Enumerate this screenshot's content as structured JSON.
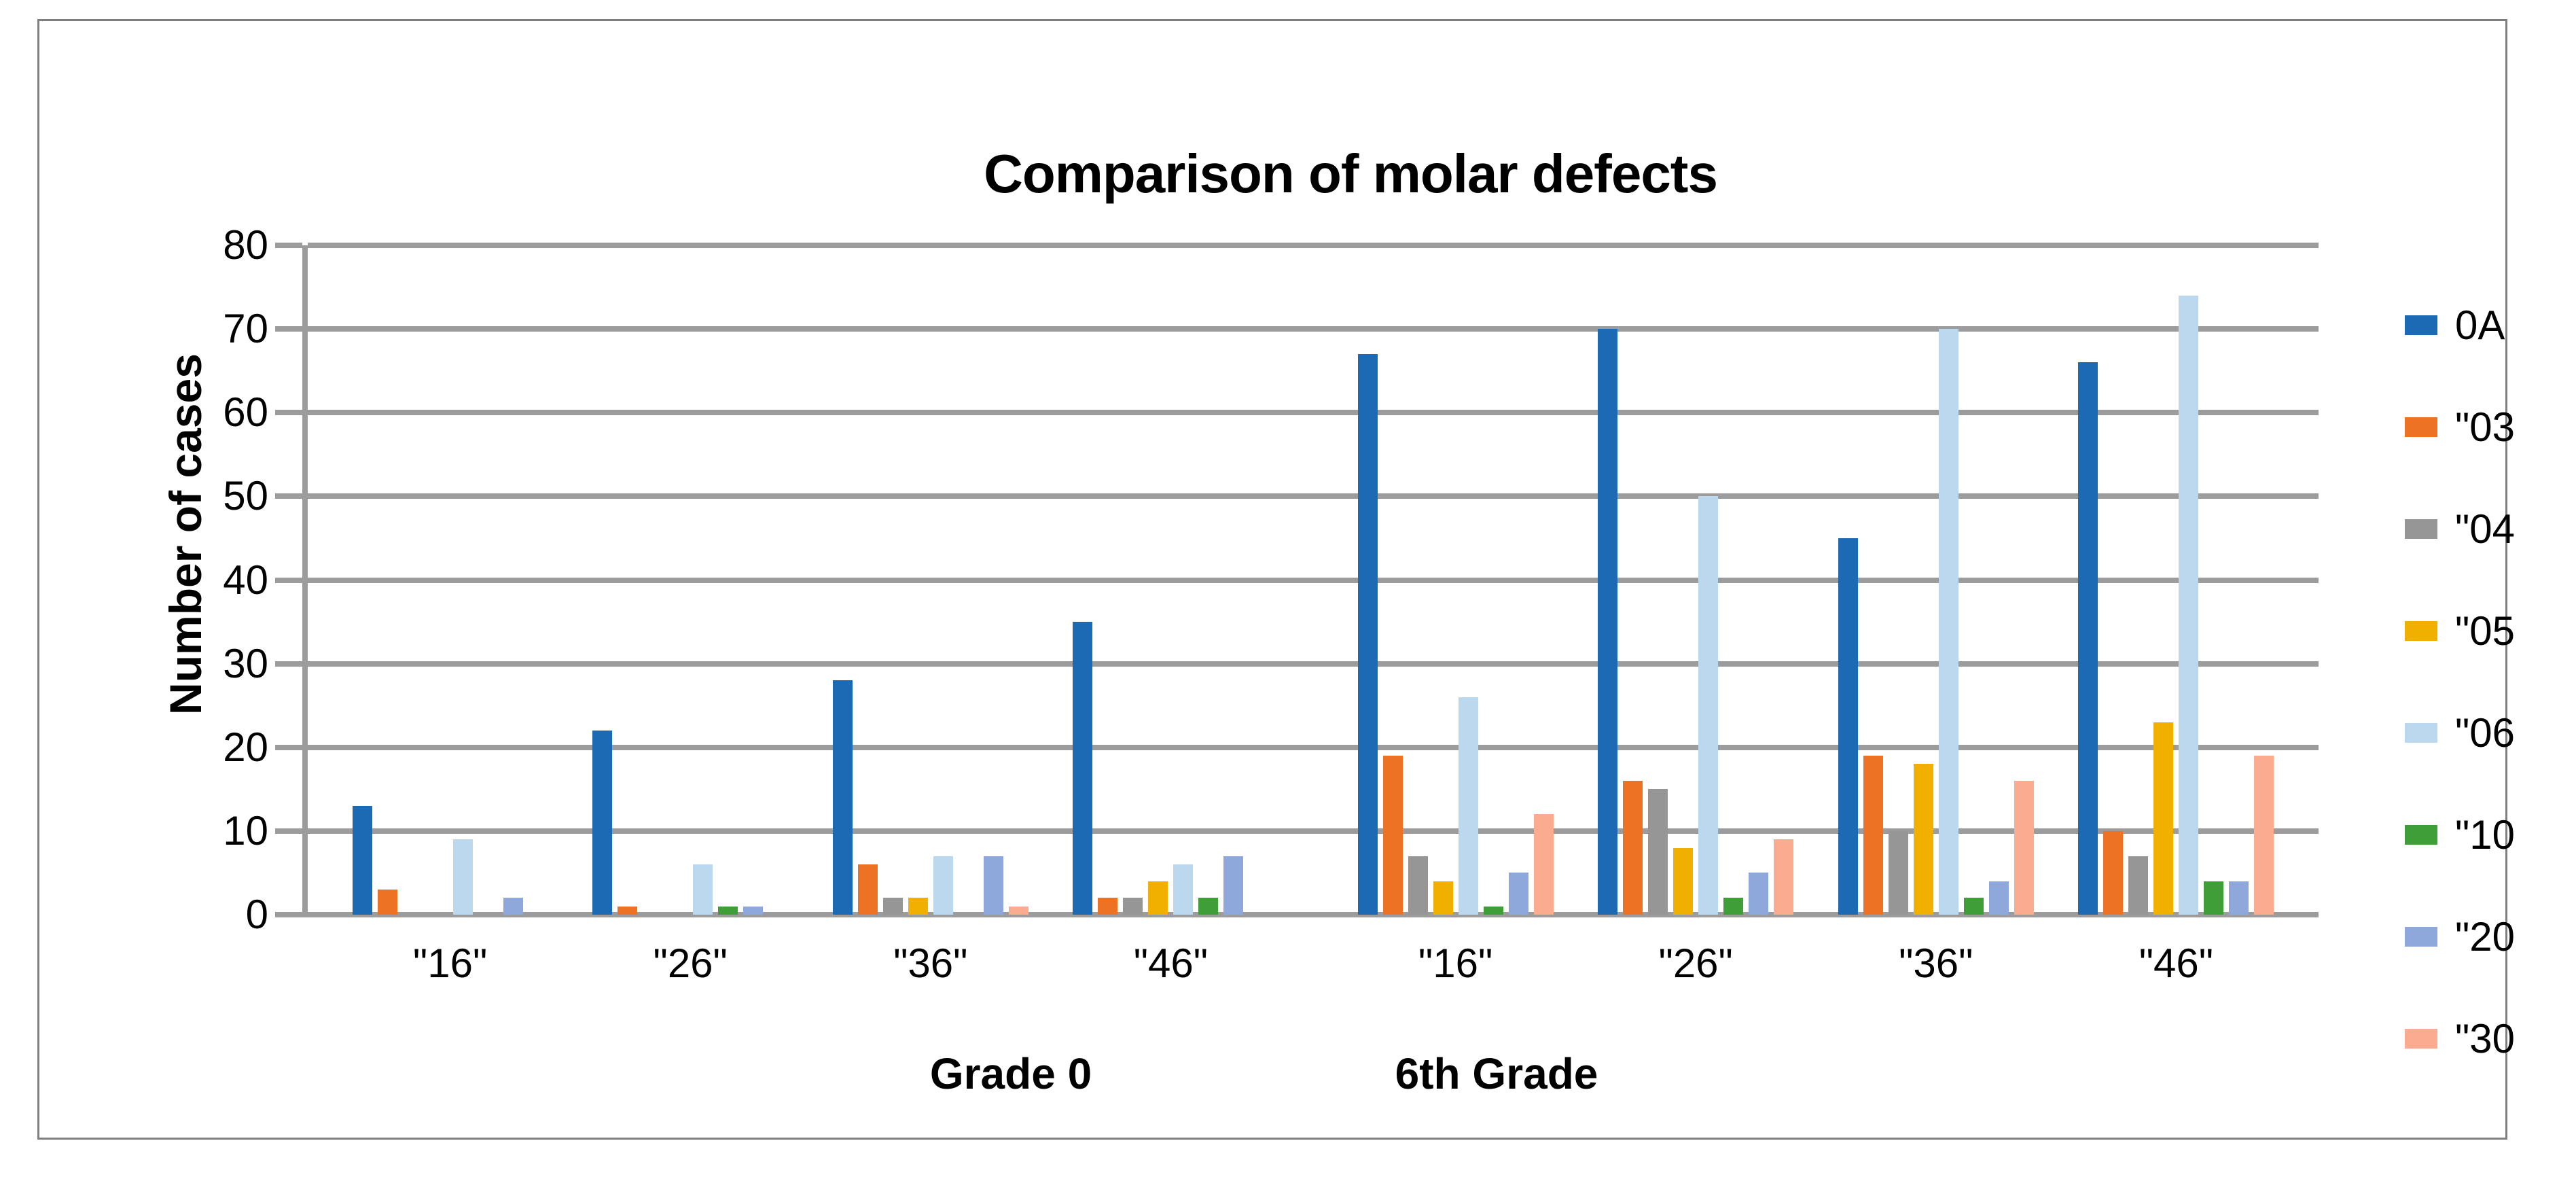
{
  "chart_data": {
    "type": "bar",
    "title": "Comparison of molar defects",
    "ylabel": "Number of cases",
    "xlabel": "",
    "ylim": [
      0,
      80
    ],
    "ytick_labels": [
      "0",
      "10",
      "20",
      "30",
      "40",
      "50",
      "60",
      "70",
      "80"
    ],
    "grid": true,
    "legend_position": "right",
    "colors": {
      "gridline": "#9c9c9c",
      "frame_border": "#7f7f7f"
    },
    "sections": [
      {
        "label": "Grade 0",
        "categories": [
          "\"16\"",
          "\"26\"",
          "\"36\"",
          "\"46\""
        ]
      },
      {
        "label": "6th Grade",
        "categories": [
          "\"16\"",
          "\"26\"",
          "\"36\"",
          "\"46\""
        ]
      }
    ],
    "series": [
      {
        "name": "0A",
        "color": "#1b6ab3",
        "values": {
          "Grade 0": [
            13,
            22,
            28,
            35
          ],
          "6th Grade": [
            67,
            70,
            45,
            66
          ]
        }
      },
      {
        "name": "\"03",
        "color": "#ed7224",
        "values": {
          "Grade 0": [
            3,
            1,
            6,
            2
          ],
          "6th Grade": [
            19,
            16,
            19,
            10
          ]
        }
      },
      {
        "name": "\"04",
        "color": "#969696",
        "values": {
          "Grade 0": [
            0,
            0,
            2,
            2
          ],
          "6th Grade": [
            7,
            15,
            10,
            7
          ]
        }
      },
      {
        "name": "\"05",
        "color": "#f1af00",
        "values": {
          "Grade 0": [
            0,
            0,
            2,
            4
          ],
          "6th Grade": [
            4,
            8,
            18,
            23
          ]
        }
      },
      {
        "name": "\"06",
        "color": "#bcd8ee",
        "values": {
          "Grade 0": [
            9,
            6,
            7,
            6
          ],
          "6th Grade": [
            26,
            50,
            70,
            74
          ]
        }
      },
      {
        "name": "\"10",
        "color": "#3f9e38",
        "values": {
          "Grade 0": [
            0,
            1,
            0,
            2
          ],
          "6th Grade": [
            1,
            2,
            2,
            4
          ]
        }
      },
      {
        "name": "\"20",
        "color": "#8fa8dc",
        "values": {
          "Grade 0": [
            2,
            1,
            7,
            7
          ],
          "6th Grade": [
            5,
            5,
            4,
            4
          ]
        }
      },
      {
        "name": "\"30",
        "color": "#fbab8f",
        "values": {
          "Grade 0": [
            0,
            0,
            1,
            0
          ],
          "6th Grade": [
            12,
            9,
            16,
            19
          ]
        }
      }
    ]
  }
}
